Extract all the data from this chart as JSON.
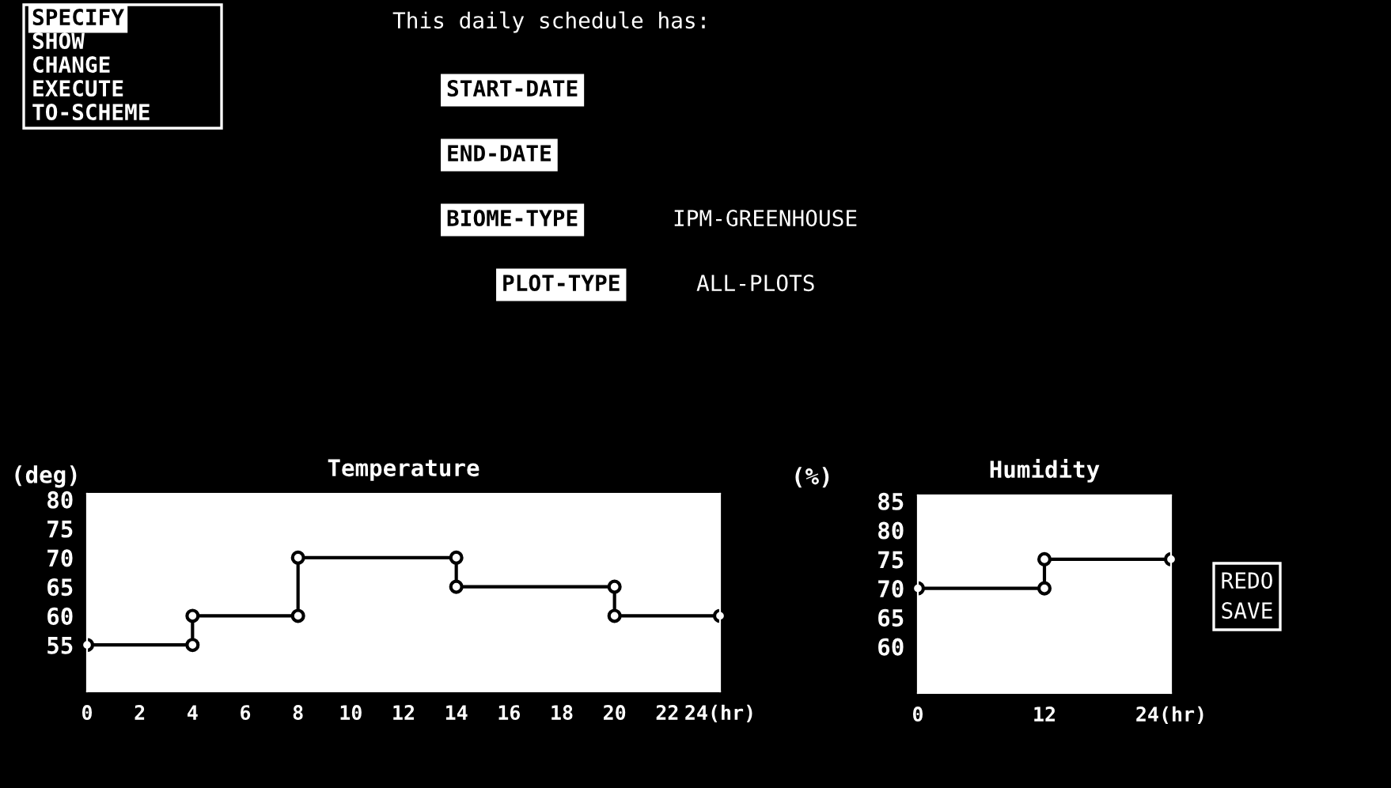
{
  "chart_data": [
    {
      "type": "other",
      "annotations": [
        "SPECIFY",
        "SHOW",
        "CHANGE",
        "EXECUTE",
        "TO-SCHEME",
        "This daily schedule has:",
        "START-DATE",
        "END-DATE",
        "BIOME-TYPE",
        "IPM-GREENHOUSE",
        "PLOT-TYPE",
        "ALL-PLOTS",
        "REDO",
        "SAVE"
      ]
    },
    {
      "type": "line",
      "title": "Temperature",
      "ylabel": "(deg)",
      "xlim": [
        0,
        24
      ],
      "ylim": [
        47,
        81
      ],
      "xticks": [
        0,
        2,
        4,
        6,
        8,
        10,
        12,
        14,
        16,
        18,
        20,
        22,
        {
          "value": 24,
          "label": "24(hr)"
        }
      ],
      "yticks": [
        55,
        60,
        65,
        70,
        75,
        80
      ],
      "marker": "circle",
      "grid": false,
      "series": [
        {
          "color": "#000000",
          "x": [
            0,
            4,
            4,
            8,
            8,
            14,
            14,
            20,
            20,
            24
          ],
          "values": [
            55,
            55,
            60,
            60,
            70,
            70,
            65,
            65,
            60,
            60
          ]
        }
      ]
    },
    {
      "type": "line",
      "title": "Humidity",
      "ylabel": "(%)",
      "xlim": [
        0,
        24
      ],
      "ylim": [
        52,
        86
      ],
      "xticks": [
        0,
        12,
        {
          "value": 24,
          "label": "24(hr)"
        }
      ],
      "yticks": [
        60,
        65,
        70,
        75,
        80,
        85
      ],
      "marker": "circle",
      "grid": false,
      "series": [
        {
          "color": "#000000",
          "x": [
            0,
            12,
            12,
            24
          ],
          "values": [
            70,
            70,
            75,
            75
          ]
        }
      ]
    }
  ]
}
